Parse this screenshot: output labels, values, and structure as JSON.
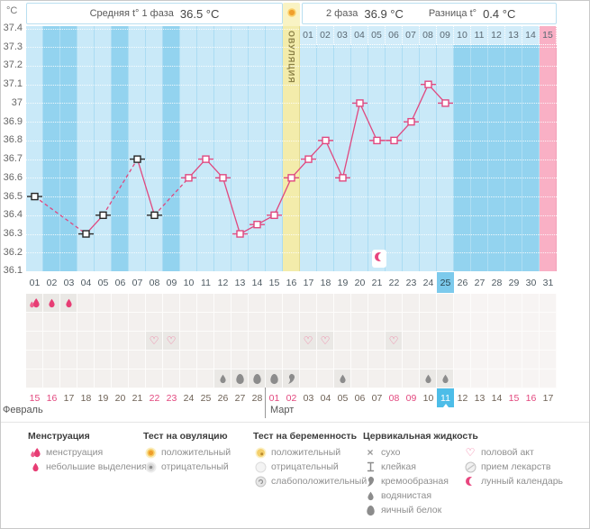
{
  "header": {
    "unit": "°C",
    "phase1_label": "Средняя t° 1 фаза",
    "phase1_value": "36.5 °C",
    "phase2_label": "2 фаза",
    "phase2_value": "36.9 °C",
    "diff_label": "Разница t°",
    "diff_value": "0.4 °C",
    "ovulation_header_icon": "sun"
  },
  "chart_data": {
    "type": "line",
    "title": "Basal body temperature cycle chart",
    "ylabel": "°C",
    "ylim": [
      36.1,
      37.4
    ],
    "y_axis_labels": [
      "37.4",
      "37.3",
      "37.2",
      "37.1",
      "37",
      "36.9",
      "36.8",
      "36.7",
      "36.6",
      "36.5",
      "36.4",
      "36.3",
      "36.2",
      "36.1"
    ],
    "x_days": [
      "01",
      "02",
      "03",
      "04",
      "05",
      "06",
      "07",
      "08",
      "09",
      "10",
      "11",
      "12",
      "13",
      "14",
      "15",
      "16",
      "17",
      "18",
      "19",
      "20",
      "21",
      "22",
      "23",
      "24",
      "25",
      "26",
      "27",
      "28",
      "29",
      "30",
      "31"
    ],
    "dpo_labels": [
      "01",
      "02",
      "03",
      "04",
      "05",
      "06",
      "07",
      "08",
      "09",
      "10",
      "11",
      "12",
      "13",
      "14",
      "15"
    ],
    "dpo_highlight_label": "15",
    "ovulation_day": 16,
    "ovulation_label": "ОВУЛЯЦИЯ",
    "current_day": 25,
    "pink_column_day": 31,
    "moon_day": 21,
    "grid": "white-dotted",
    "line_color": "#e0487f",
    "points": [
      {
        "day": 1,
        "temp": 36.5,
        "marker": "black"
      },
      {
        "day": 4,
        "temp": 36.3,
        "marker": "black"
      },
      {
        "day": 5,
        "temp": 36.4,
        "marker": "black"
      },
      {
        "day": 7,
        "temp": 36.7,
        "marker": "black"
      },
      {
        "day": 8,
        "temp": 36.4,
        "marker": "black"
      },
      {
        "day": 10,
        "temp": 36.6,
        "marker": "pink"
      },
      {
        "day": 11,
        "temp": 36.7,
        "marker": "pink"
      },
      {
        "day": 12,
        "temp": 36.6,
        "marker": "pink"
      },
      {
        "day": 13,
        "temp": 36.3,
        "marker": "pink"
      },
      {
        "day": 14,
        "temp": 36.35,
        "marker": "pink"
      },
      {
        "day": 15,
        "temp": 36.4,
        "marker": "pink"
      },
      {
        "day": 16,
        "temp": 36.6,
        "marker": "pink"
      },
      {
        "day": 17,
        "temp": 36.7,
        "marker": "pink"
      },
      {
        "day": 18,
        "temp": 36.8,
        "marker": "pink"
      },
      {
        "day": 19,
        "temp": 36.6,
        "marker": "pink"
      },
      {
        "day": 20,
        "temp": 37.0,
        "marker": "pink"
      },
      {
        "day": 21,
        "temp": 36.8,
        "marker": "pink"
      },
      {
        "day": 22,
        "temp": 36.8,
        "marker": "pink"
      },
      {
        "day": 23,
        "temp": 36.9,
        "marker": "pink"
      },
      {
        "day": 24,
        "temp": 37.1,
        "marker": "pink"
      },
      {
        "day": 25,
        "temp": 37.0,
        "marker": "pink"
      }
    ]
  },
  "symbols": {
    "rows": [
      {
        "name": "menstruation",
        "cells": {
          "1": "menses-heavy",
          "2": "menses-light",
          "3": "menses-light"
        }
      },
      {
        "name": "ovulation-test",
        "cells": {}
      },
      {
        "name": "intercourse",
        "cells": {
          "8": "heart",
          "9": "heart",
          "17": "heart",
          "18": "heart",
          "22": "heart"
        }
      },
      {
        "name": "pregnancy-test",
        "cells": {}
      },
      {
        "name": "cervical-fluid",
        "cells": {
          "12": "watery",
          "13": "eggwhite",
          "14": "eggwhite",
          "15": "eggwhite",
          "16": "creamy",
          "19": "watery",
          "24": "watery",
          "25": "watery"
        }
      }
    ]
  },
  "calendar": {
    "dates": [
      "15",
      "16",
      "17",
      "18",
      "19",
      "20",
      "21",
      "22",
      "23",
      "24",
      "25",
      "26",
      "27",
      "28",
      "01",
      "02",
      "03",
      "04",
      "05",
      "06",
      "07",
      "08",
      "09",
      "10",
      "11",
      "12",
      "13",
      "14",
      "15",
      "16",
      "17"
    ],
    "weekend_cycle_days": [
      1,
      2,
      8,
      9,
      15,
      16,
      22,
      23,
      29,
      30
    ],
    "today_cycle_day": 25,
    "month_break_after_day": 14,
    "months": [
      "Февраль",
      "Март"
    ]
  },
  "legend": {
    "sections": [
      {
        "title": "Менструация",
        "items": [
          {
            "icon": "menses-heavy",
            "label": "менструация"
          },
          {
            "icon": "menses-light",
            "label": "небольшие выделения"
          }
        ]
      },
      {
        "title": "Тест на овуляцию",
        "items": [
          {
            "icon": "ovu-pos",
            "label": "положительный"
          },
          {
            "icon": "ovu-neg",
            "label": "отрицательный"
          }
        ]
      },
      {
        "title": "Тест на беременность",
        "items": [
          {
            "icon": "preg-pos",
            "label": "положительный"
          },
          {
            "icon": "preg-neg",
            "label": "отрицательный"
          },
          {
            "icon": "preg-weak",
            "label": "слабоположительный"
          }
        ]
      },
      {
        "title": "Цервикальная жидкость",
        "items": [
          {
            "icon": "dry",
            "label": "сухо"
          },
          {
            "icon": "sticky",
            "label": "клейкая"
          },
          {
            "icon": "creamy",
            "label": "кремообразная"
          },
          {
            "icon": "watery",
            "label": "водянистая"
          },
          {
            "icon": "eggwhite",
            "label": "яичный белок"
          }
        ]
      },
      {
        "title": "",
        "items": [
          {
            "icon": "heart",
            "label": "половой акт"
          },
          {
            "icon": "pill",
            "label": "прием лекарств"
          },
          {
            "icon": "moon",
            "label": "лунный календарь"
          }
        ]
      }
    ]
  },
  "colors": {
    "accent_pink": "#e0487f",
    "chart_bg": "#93d3ef",
    "chart_bg_light": "#c9e9f8",
    "ovulation_yellow": "#f3ecab",
    "late_pink": "#f9b0c5",
    "today_blue": "#4dbde8",
    "today_daynum_blue": "#7ccaec",
    "weekend_text": "#e2477e"
  }
}
